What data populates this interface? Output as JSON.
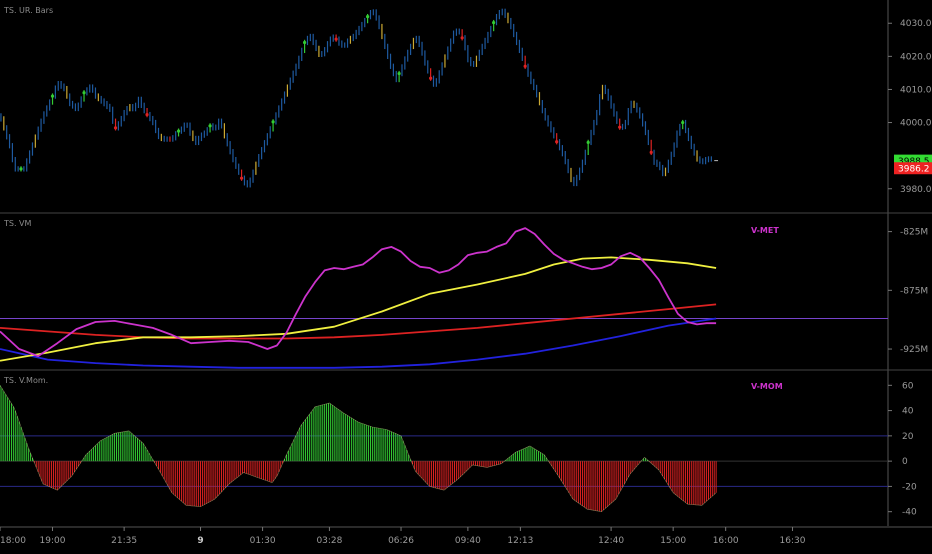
{
  "panes": {
    "price": {
      "label": "TS. UR. Bars"
    },
    "vm": {
      "label": "TS. VM",
      "tag": "V-MET",
      "tag_color": "#cc33cc"
    },
    "mom": {
      "label": "TS. V.Mom.",
      "tag": "V-MOM",
      "tag_color": "#cc33cc"
    }
  },
  "colors": {
    "background": "#000000",
    "grid": "#2a2a2a",
    "bar_blue": "#1e5aa0",
    "bar_up": "#33cc33",
    "bar_down": "#dd2222",
    "bar_neutral": "#ccaa33",
    "line_magenta": "#cc33cc",
    "line_yellow": "#f0f040",
    "line_red": "#dd2222",
    "line_blue": "#2222dd",
    "hist_pos": "#33cc33",
    "hist_neg": "#dd2222",
    "threshold": "#2a2a88",
    "axis_text": "#9a9a9a",
    "price_badge_green": "#33dd33",
    "price_badge_red": "#ee2222"
  },
  "chart_data": [
    {
      "type": "bar",
      "pane": "price",
      "title": "TS. UR. Bars",
      "ylim": [
        3976,
        4034
      ],
      "yticks": [
        "4030.0",
        "4020.0",
        "4010.0",
        "4000.0",
        "3980.0"
      ],
      "ytick_values": [
        4030,
        4020,
        4010,
        4000,
        3980
      ],
      "last_prices": [
        {
          "label": "3988.5",
          "value": 3988.5,
          "color": "green"
        },
        {
          "label": "3986.2",
          "value": 3986.2,
          "color": "red"
        }
      ],
      "series": [
        {
          "x": [
            0,
            10,
            15,
            25,
            30,
            40,
            45,
            55,
            60,
            68,
            72,
            80,
            88,
            95,
            100,
            108,
            115,
            120,
            125,
            130,
            135,
            140,
            145,
            150,
            155,
            160,
            165,
            170,
            175,
            180,
            185,
            190,
            195,
            200,
            205,
            210,
            215,
            220,
            225,
            230,
            235,
            240,
            245,
            250,
            255,
            260,
            270,
            280,
            290,
            300,
            310,
            320,
            325,
            330,
            335,
            340,
            345,
            350,
            355,
            360,
            365,
            370,
            375,
            380,
            385,
            390,
            395,
            400,
            405,
            410,
            415,
            420,
            425,
            430,
            435,
            440,
            445,
            450,
            455,
            460,
            465,
            470,
            475,
            480,
            485,
            490,
            495,
            500,
            505,
            510,
            515,
            520,
            525,
            530,
            535,
            540,
            545,
            550,
            555,
            560,
            570,
            580,
            590,
            600,
            605,
            610,
            615,
            620,
            625,
            630,
            635,
            640,
            645,
            650,
            655,
            660,
            665,
            670,
            675,
            680,
            685,
            690,
            695,
            700,
            705,
            710,
            715,
            720,
            725,
            730,
            735,
            740,
            745
          ],
          "values": [
            4002,
            3993,
            3986,
            3986,
            3990,
            3998,
            4002,
            4008,
            4012,
            4010,
            4006,
            4004,
            4009,
            4011,
            4008,
            4006,
            4004,
            3998,
            4000,
            4003,
            4005,
            4004,
            4007,
            4004,
            4002,
            4000,
            3996,
            3995,
            3995,
            3995,
            3997,
            3998,
            4000,
            3996,
            3994,
            3996,
            3997,
            3999,
            3998,
            4001,
            3996,
            3992,
            3988,
            3985,
            3982,
            3981,
            3989,
            3996,
            4003,
            4010,
            4017,
            4025,
            4026,
            4023,
            4020,
            4022,
            4025,
            4026,
            4024,
            4023,
            4025,
            4026,
            4028,
            4030,
            4032,
            4034,
            4031,
            4026,
            4021,
            4016,
            4013,
            4016,
            4020,
            4023,
            4026,
            4023,
            4018,
            4014,
            4011,
            4015,
            4019,
            4023,
            4027,
            4028,
            4025,
            4019,
            4017,
            4020,
            4023,
            4026,
            4029,
            4032,
            4034,
            4032,
            4029,
            4025,
            4021,
            4017,
            4013,
            4010,
            4002,
            3996,
            3990,
            3981,
            3984,
            3988,
            3993,
            3998,
            4003,
            4011,
            4009,
            4005,
            4001,
            3998,
            4000,
            4006,
            4005,
            4002,
            3998,
            3993,
            3988,
            3987,
            3984,
            3988,
            3992,
            3998,
            4000,
            3996,
            3992,
            3989,
            3988,
            3989,
            3989
          ]
        }
      ]
    },
    {
      "type": "line",
      "pane": "vm",
      "title": "TS. VM",
      "ylim": [
        -942,
        -810
      ],
      "yticks": [
        "-825M",
        "-875M",
        "-925M"
      ],
      "ytick_values": [
        -825,
        -875,
        -925
      ],
      "baseline": -899,
      "series": [
        {
          "color": "magenta",
          "x": [
            0,
            20,
            40,
            60,
            80,
            100,
            120,
            140,
            160,
            180,
            200,
            220,
            240,
            260,
            280,
            290,
            300,
            310,
            320,
            330,
            340,
            350,
            360,
            370,
            380,
            390,
            400,
            410,
            420,
            430,
            440,
            450,
            460,
            470,
            480,
            490,
            500,
            510,
            520,
            530,
            540,
            550,
            560,
            570,
            580,
            590,
            600,
            610,
            620,
            630,
            640,
            650,
            660,
            670,
            680,
            690,
            700,
            710,
            720,
            730,
            740,
            750
          ],
          "values": [
            -910,
            -925,
            -931,
            -920,
            -908,
            -902,
            -901,
            -904,
            -907,
            -913,
            -920,
            -919,
            -918,
            -919,
            -925,
            -922,
            -911,
            -895,
            -880,
            -868,
            -858,
            -856,
            -857,
            -855,
            -853,
            -847,
            -840,
            -838,
            -842,
            -850,
            -855,
            -856,
            -860,
            -858,
            -853,
            -845,
            -843,
            -842,
            -838,
            -835,
            -825,
            -822,
            -827,
            -836,
            -844,
            -849,
            -852,
            -855,
            -857,
            -856,
            -853,
            -846,
            -843,
            -847,
            -856,
            -866,
            -881,
            -895,
            -902,
            -904,
            -903,
            -903
          ]
        },
        {
          "color": "yellow",
          "x": [
            0,
            50,
            100,
            150,
            200,
            250,
            300,
            350,
            400,
            450,
            500,
            550,
            580,
            610,
            640,
            680,
            720,
            750
          ],
          "values": [
            -935,
            -928,
            -920,
            -915,
            -915,
            -914,
            -912,
            -906,
            -893,
            -878,
            -870,
            -861,
            -853,
            -848,
            -847,
            -849,
            -852,
            -856
          ]
        },
        {
          "color": "red",
          "x": [
            0,
            50,
            100,
            150,
            200,
            250,
            300,
            350,
            400,
            450,
            500,
            550,
            600,
            650,
            700,
            750
          ],
          "values": [
            -907,
            -910,
            -913,
            -915,
            -916,
            -916,
            -916,
            -915,
            -913,
            -910,
            -907,
            -903,
            -899,
            -895,
            -891,
            -887
          ]
        },
        {
          "color": "blue",
          "x": [
            0,
            50,
            100,
            150,
            200,
            250,
            300,
            350,
            400,
            450,
            500,
            550,
            600,
            650,
            700,
            750
          ],
          "values": [
            -925,
            -934,
            -937,
            -939,
            -940,
            -941,
            -941,
            -941,
            -940,
            -938,
            -934,
            -929,
            -922,
            -914,
            -905,
            -899
          ]
        }
      ]
    },
    {
      "type": "bar",
      "pane": "mom",
      "title": "TS. V.Mom.",
      "ylim": [
        -45,
        65
      ],
      "yticks": [
        "60",
        "40",
        "20",
        "0",
        "-20",
        "-40"
      ],
      "ytick_values": [
        60,
        40,
        20,
        0,
        -20,
        -40
      ],
      "thresholds": [
        20,
        -20
      ],
      "series": [
        {
          "x": [
            0,
            15,
            30,
            45,
            60,
            75,
            90,
            105,
            120,
            135,
            150,
            165,
            180,
            195,
            210,
            225,
            240,
            255,
            270,
            285,
            290,
            300,
            315,
            330,
            345,
            360,
            375,
            390,
            405,
            420,
            435,
            450,
            465,
            480,
            495,
            510,
            525,
            540,
            555,
            570,
            585,
            600,
            615,
            630,
            645,
            660,
            675,
            690,
            705,
            720,
            735,
            750
          ],
          "values": [
            60,
            42,
            10,
            -18,
            -23,
            -12,
            5,
            16,
            22,
            24,
            14,
            -5,
            -25,
            -35,
            -36,
            -30,
            -18,
            -9,
            -13,
            -17,
            -12,
            5,
            28,
            43,
            46,
            38,
            31,
            27,
            25,
            20,
            -8,
            -20,
            -23,
            -14,
            -3,
            -5,
            -2,
            7,
            12,
            5,
            -12,
            -30,
            -38,
            -40,
            -30,
            -10,
            3,
            -7,
            -25,
            -34,
            -35,
            -25
          ]
        }
      ]
    }
  ],
  "x_axis": {
    "ticks": [
      {
        "label": "18:00",
        "x": 0,
        "bold": false
      },
      {
        "label": "19:00",
        "x": 55,
        "bold": false
      },
      {
        "label": "21:35",
        "x": 130,
        "bold": false
      },
      {
        "label": "9",
        "x": 210,
        "bold": true
      },
      {
        "label": "01:30",
        "x": 275,
        "bold": false
      },
      {
        "label": "03:28",
        "x": 345,
        "bold": false
      },
      {
        "label": "06:26",
        "x": 420,
        "bold": false
      },
      {
        "label": "09:40",
        "x": 490,
        "bold": false
      },
      {
        "label": "12:13",
        "x": 545,
        "bold": false
      },
      {
        "label": "12:40",
        "x": 640,
        "bold": false
      },
      {
        "label": "15:00",
        "x": 705,
        "bold": false
      },
      {
        "label": "16:00",
        "x": 760,
        "bold": false
      },
      {
        "label": "16:30",
        "x": 830,
        "bold": false
      }
    ]
  }
}
